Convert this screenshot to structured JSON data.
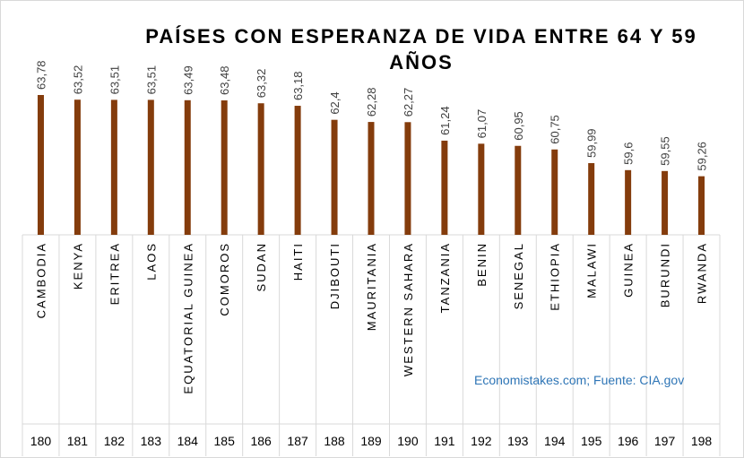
{
  "chart_data": {
    "type": "bar",
    "title": "PAÍSES CON ESPERANZA DE VIDA ENTRE 64 Y 59 AÑOS",
    "categories": [
      "CAMBODIA",
      "KENYA",
      "ERITREA",
      "LAOS",
      "EQUATORIAL GUINEA",
      "COMOROS",
      "SUDAN",
      "HAITI",
      "DJIBOUTI",
      "MAURITANIA",
      "WESTERN SAHARA",
      "TANZANIA",
      "BENIN",
      "SENEGAL",
      "ETHIOPIA",
      "MALAWI",
      "GUINEA",
      "BURUNDI",
      "RWANDA"
    ],
    "ranks": [
      "180",
      "181",
      "182",
      "183",
      "184",
      "185",
      "186",
      "187",
      "188",
      "189",
      "190",
      "191",
      "192",
      "193",
      "194",
      "195",
      "196",
      "197",
      "198"
    ],
    "values": [
      63.78,
      63.52,
      63.51,
      63.51,
      63.49,
      63.48,
      63.32,
      63.18,
      62.4,
      62.28,
      62.27,
      61.24,
      61.07,
      60.95,
      60.75,
      59.99,
      59.6,
      59.55,
      59.26
    ],
    "value_labels": [
      "63,78",
      "63,52",
      "63,51",
      "63,51",
      "63,49",
      "63,48",
      "63,32",
      "63,18",
      "62,4",
      "62,28",
      "62,27",
      "61,24",
      "61,07",
      "60,95",
      "60,75",
      "59,99",
      "59,6",
      "59,55",
      "59,26"
    ],
    "ylim": [
      56,
      64.5
    ],
    "grid": false,
    "legend": "none",
    "bar_color": "#843c0c",
    "source": "Economistakes.com; Fuente: CIA.gov"
  }
}
